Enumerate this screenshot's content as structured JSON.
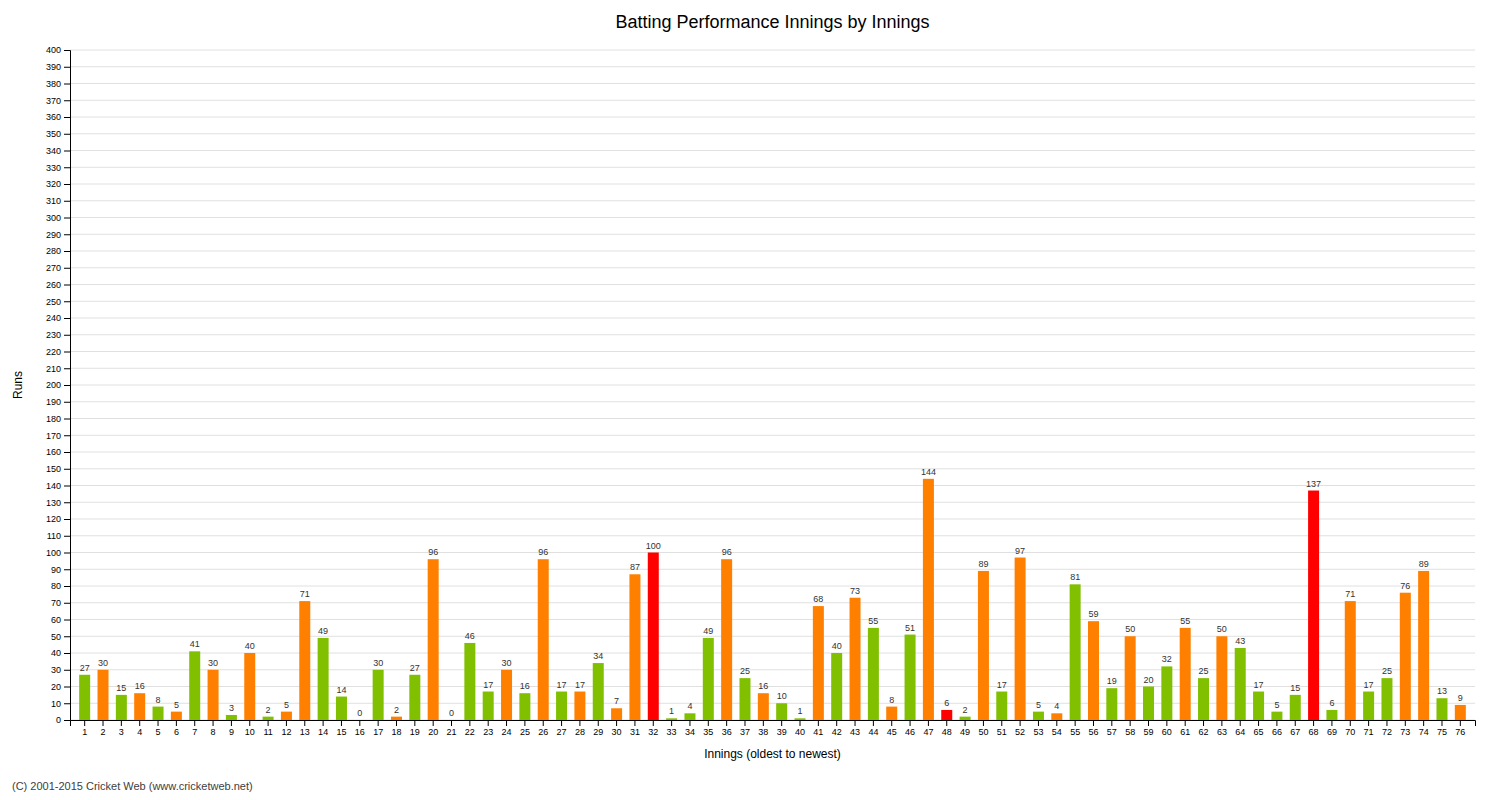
{
  "chart_data": {
    "type": "bar",
    "title": "Batting Performance Innings by Innings",
    "xlabel": "Innings (oldest to newest)",
    "ylabel": "Runs",
    "footer": "(C) 2001-2015 Cricket Web (www.cricketweb.net)",
    "categories": [
      "1",
      "2",
      "3",
      "4",
      "5",
      "6",
      "7",
      "8",
      "9",
      "10",
      "11",
      "12",
      "13",
      "14",
      "15",
      "16",
      "17",
      "18",
      "19",
      "20",
      "21",
      "22",
      "23",
      "24",
      "25",
      "26",
      "27",
      "28",
      "29",
      "30",
      "31",
      "32",
      "33",
      "34",
      "35",
      "36",
      "37",
      "38",
      "39",
      "40",
      "41",
      "42",
      "43",
      "44",
      "45",
      "46",
      "47",
      "48",
      "49",
      "50",
      "51",
      "52",
      "53",
      "54",
      "55",
      "56",
      "57",
      "58",
      "59",
      "60",
      "61",
      "62",
      "63",
      "64",
      "65",
      "66",
      "67",
      "68",
      "69",
      "70",
      "71",
      "72",
      "73",
      "74",
      "75",
      "76"
    ],
    "values": [
      27,
      30,
      15,
      16,
      8,
      5,
      41,
      30,
      3,
      40,
      2,
      5,
      71,
      49,
      14,
      0,
      30,
      2,
      27,
      96,
      0,
      46,
      17,
      30,
      16,
      96,
      17,
      17,
      34,
      7,
      87,
      100,
      1,
      4,
      49,
      96,
      25,
      16,
      10,
      1,
      68,
      40,
      73,
      55,
      8,
      51,
      144,
      6,
      2,
      89,
      17,
      97,
      5,
      4,
      81,
      59,
      19,
      50,
      20,
      32,
      55,
      25,
      50,
      43,
      17,
      5,
      15,
      137,
      6,
      71,
      17,
      25,
      76,
      89,
      13,
      9
    ],
    "colors": [
      "#80c000",
      "#ff8000",
      "#80c000",
      "#ff8000",
      "#80c000",
      "#ff8000",
      "#80c000",
      "#ff8000",
      "#80c000",
      "#ff8000",
      "#80c000",
      "#ff8000",
      "#ff8000",
      "#80c000",
      "#80c000",
      "#ff8000",
      "#80c000",
      "#ff8000",
      "#80c000",
      "#ff8000",
      "#80c000",
      "#80c000",
      "#80c000",
      "#ff8000",
      "#80c000",
      "#ff8000",
      "#80c000",
      "#ff8000",
      "#80c000",
      "#ff8000",
      "#ff8000",
      "#ff0000",
      "#80c000",
      "#80c000",
      "#80c000",
      "#ff8000",
      "#80c000",
      "#ff8000",
      "#80c000",
      "#80c000",
      "#ff8000",
      "#80c000",
      "#ff8000",
      "#80c000",
      "#ff8000",
      "#80c000",
      "#ff8000",
      "#ff0000",
      "#80c000",
      "#ff8000",
      "#80c000",
      "#ff8000",
      "#80c000",
      "#ff8000",
      "#80c000",
      "#ff8000",
      "#80c000",
      "#ff8000",
      "#80c000",
      "#80c000",
      "#ff8000",
      "#80c000",
      "#ff8000",
      "#80c000",
      "#80c000",
      "#80c000",
      "#80c000",
      "#ff0000",
      "#80c000",
      "#ff8000",
      "#80c000",
      "#80c000",
      "#ff8000",
      "#ff8000",
      "#80c000",
      "#ff8000"
    ],
    "ylim": [
      0,
      400
    ],
    "yticks": [
      0,
      10,
      20,
      30,
      40,
      50,
      60,
      70,
      80,
      90,
      100,
      110,
      120,
      130,
      140,
      150,
      160,
      170,
      180,
      190,
      200,
      210,
      220,
      230,
      240,
      250,
      260,
      270,
      280,
      290,
      300,
      310,
      320,
      330,
      340,
      350,
      360,
      370,
      380,
      390,
      400
    ],
    "grid": true,
    "data_labels": true
  }
}
